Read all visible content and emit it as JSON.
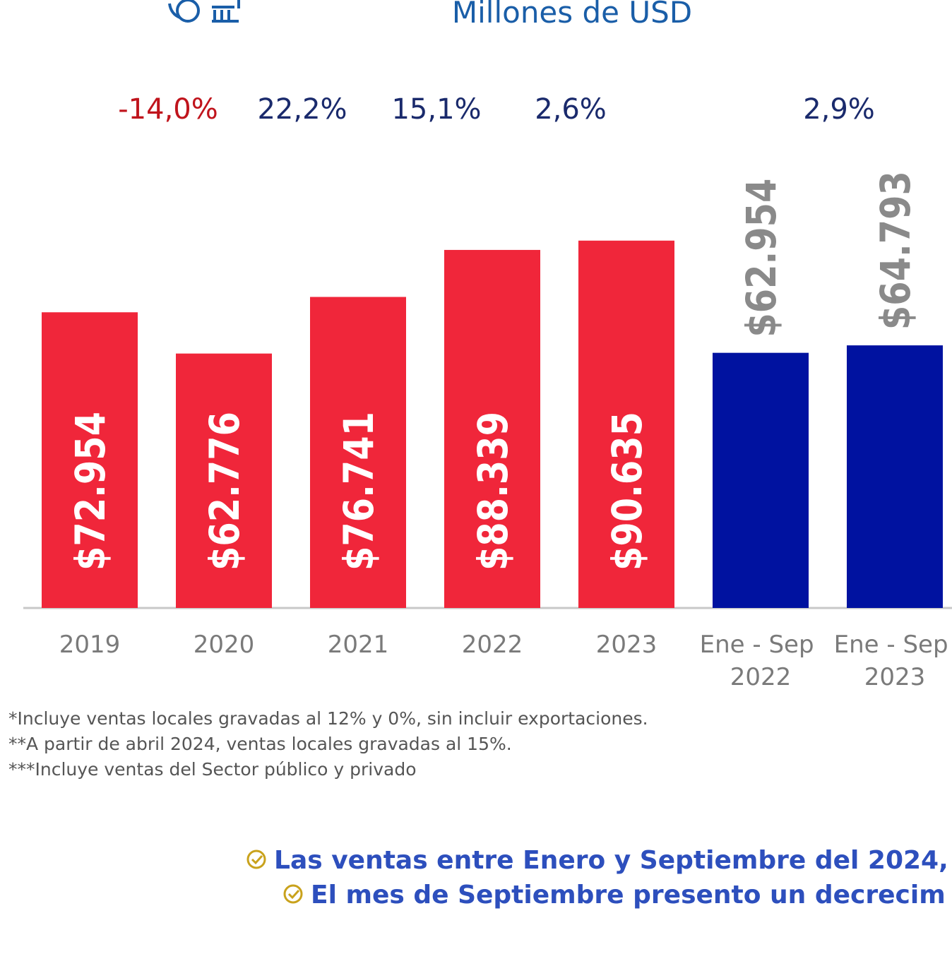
{
  "chart_data": {
    "type": "bar",
    "title": "Millones de USD",
    "categories": [
      "2019",
      "2020",
      "2021",
      "2022",
      "2023",
      "Ene - Sep 2022",
      "Ene - Sep 2023"
    ],
    "values": [
      72954,
      62776,
      76741,
      88339,
      90635,
      62954,
      64793
    ],
    "value_labels": [
      "$72.954",
      "$62.776",
      "$76.741",
      "$88.339",
      "$90.635",
      "$62.954",
      "$64.793"
    ],
    "colors": [
      "#f0263a",
      "#f0263a",
      "#f0263a",
      "#f0263a",
      "#f0263a",
      "#0012a0",
      "#0012a0"
    ],
    "ylim": [
      0,
      150000
    ],
    "growth": [
      {
        "label": "-14,0%",
        "color": "#c0141c"
      },
      {
        "label": "22,2%",
        "color": "#1a2a6c"
      },
      {
        "label": "15,1%",
        "color": "#1a2a6c"
      },
      {
        "label": "2,6%",
        "color": "#1a2a6c"
      },
      {
        "label": "2,9%",
        "color": "#1a2a6c"
      }
    ],
    "footnotes": [
      "*Incluye ventas locales gravadas al 12% y 0%, sin incluir exportaciones.",
      "**A partir de abril 2024, ventas locales gravadas al 15%.",
      "***Incluye ventas del Sector público y privado"
    ],
    "bullets": [
      "Las ventas entre Enero y Septiembre del 2024,",
      "El mes de Septiembre presento un decrecim"
    ]
  }
}
